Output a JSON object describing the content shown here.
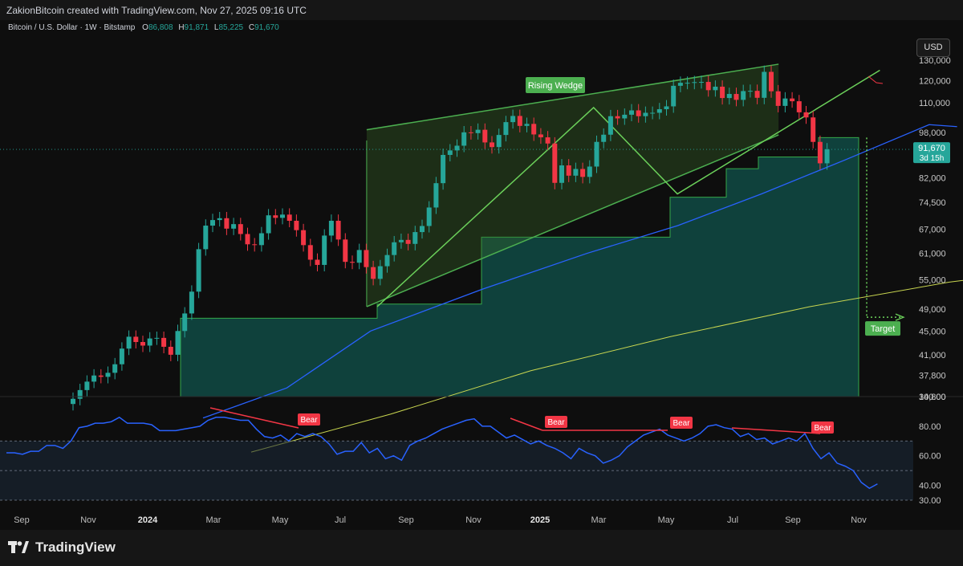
{
  "header": {
    "attribution": "ZakionBitcoin created with TradingView.com, Nov 27, 2025 09:16 UTC"
  },
  "legend": {
    "symbol": "Bitcoin / U.S. Dollar · 1W · Bitstamp",
    "o_label": "O",
    "o_value": "86,808",
    "h_label": "H",
    "h_value": "91,871",
    "l_label": "L",
    "l_value": "85,225",
    "c_label": "C",
    "c_value": "91,670"
  },
  "currency_button": "USD",
  "price_label": {
    "value": "91,670",
    "countdown": "3d 15h"
  },
  "annotations": {
    "pattern": "Rising Wedge",
    "target": "Target",
    "bear": [
      "Bear",
      "Bear",
      "Bear",
      "Bear"
    ]
  },
  "brand": {
    "name": "TradingView"
  },
  "colors": {
    "up": "#26a69a",
    "down": "#f23645",
    "wedge": "#4caf50",
    "sma_fast": "#2962ff",
    "sma_slow": "#c9d650",
    "rsi": "#2962ff",
    "bear": "#f23645"
  },
  "chart_data": [
    {
      "type": "candlestick",
      "title": "Bitcoin / U.S. Dollar · 1W · Bitstamp",
      "scale": "log",
      "y_ticks": [
        130000,
        120000,
        110000,
        98000,
        82000,
        74500,
        67000,
        61000,
        55000,
        49000,
        45000,
        41000,
        37800,
        34800
      ],
      "y_tick_labels": [
        "130,000",
        "120,000",
        "110,000",
        "98,000",
        "82,000",
        "74,500",
        "67,000",
        "61,000",
        "55,000",
        "49,000",
        "45,000",
        "41,000",
        "37,800",
        "34,800"
      ],
      "x_tick_labels": [
        "Sep",
        "Nov",
        "2024",
        "Mar",
        "May",
        "Jul",
        "Sep",
        "Nov",
        "2025",
        "Mar",
        "May",
        "Jul",
        "Sep",
        "Nov"
      ],
      "close": [
        34500,
        35700,
        36900,
        37800,
        37600,
        38200,
        39500,
        42000,
        44000,
        43100,
        42500,
        43700,
        43800,
        42300,
        41000,
        45000,
        48200,
        52500,
        62000,
        68000,
        69500,
        70000,
        67200,
        68400,
        65800,
        63200,
        63000,
        66000,
        70800,
        70100,
        71000,
        69300,
        66800,
        63000,
        59500,
        58300,
        65400,
        69300,
        64400,
        59000,
        58800,
        61800,
        57800,
        55200,
        58000,
        60600,
        63700,
        64300,
        63300,
        66300,
        67900,
        73000,
        80300,
        89700,
        91300,
        93000,
        98000,
        97700,
        99000,
        94200,
        92500,
        97000,
        102000,
        104500,
        100500,
        101300,
        97200,
        96100,
        93800,
        80400,
        86100,
        82700,
        84900,
        82300,
        85700,
        94400,
        97100,
        104400,
        103500,
        105000,
        106800,
        104400,
        105800,
        105800,
        107300,
        108500,
        117600,
        119000,
        119000,
        119300,
        119400,
        115600,
        117200,
        112100,
        113900,
        111300,
        115200,
        115300,
        112200,
        124200,
        115100,
        108700,
        111900,
        110700,
        106000,
        103900,
        94400,
        86800,
        91670
      ],
      "sma_fast_points": [
        [
          0,
          32000
        ],
        [
          12,
          36000
        ],
        [
          24,
          45000
        ],
        [
          40,
          53000
        ],
        [
          55,
          61000
        ],
        [
          68,
          68000
        ],
        [
          80,
          77000
        ],
        [
          92,
          88000
        ],
        [
          104,
          101000
        ],
        [
          108,
          100200
        ]
      ],
      "sma_slow_points": [
        [
          0,
          28000
        ],
        [
          20,
          32500
        ],
        [
          40,
          38500
        ],
        [
          60,
          44000
        ],
        [
          80,
          49500
        ],
        [
          100,
          54500
        ],
        [
          108,
          56000
        ]
      ],
      "stop_levels": [
        47300,
        47300,
        47300,
        50000,
        65000,
        65000,
        65000,
        76000,
        85000,
        89000,
        96000,
        96000
      ],
      "wedge": {
        "upper": [
          [
            47,
            99000
          ],
          [
            106,
            128000
          ]
        ],
        "lower": [
          [
            47,
            49500
          ],
          [
            106,
            97000
          ]
        ],
        "label": "Rising Wedge"
      },
      "target": {
        "price": 47500,
        "label": "Target"
      },
      "last_price": 91670
    },
    {
      "type": "line",
      "name": "RSI",
      "y_ticks": [
        100,
        80,
        60,
        40,
        30
      ],
      "y_tick_labels": [
        "100.00",
        "80.00",
        "60.00",
        "40.00",
        "30.00"
      ],
      "levels": [
        70,
        50,
        30
      ],
      "values": [
        62,
        62,
        61,
        63,
        63,
        67,
        67,
        65,
        70,
        79,
        80,
        82,
        82,
        83,
        86,
        82,
        82,
        82,
        81,
        77,
        77,
        77,
        78,
        79,
        80,
        84,
        86,
        86,
        85,
        84,
        84,
        78,
        73,
        72,
        74,
        70,
        75,
        73,
        75,
        73,
        68,
        61,
        63,
        63,
        69,
        62,
        65,
        58,
        60,
        57,
        67,
        70,
        72,
        75,
        78,
        80,
        82,
        84,
        85,
        80,
        80,
        76,
        72,
        74,
        71,
        68,
        70,
        67,
        65,
        62,
        58,
        65,
        62,
        60,
        55,
        57,
        60,
        66,
        70,
        74,
        76,
        78,
        74,
        72,
        70,
        72,
        75,
        80,
        81,
        79,
        78,
        73,
        75,
        71,
        72,
        68,
        70,
        72,
        70,
        75,
        65,
        58,
        62,
        55,
        53,
        50,
        42,
        38,
        41
      ],
      "bear_divergences": [
        [
          [
            32,
            86
          ],
          [
            47,
            74
          ]
        ],
        [
          [
            77,
            80
          ],
          [
            101,
            71
          ]
        ],
        [
          [
            101,
            71
          ],
          [
            129,
            71
          ]
        ],
        [
          [
            112,
            76
          ],
          [
            127,
            70
          ]
        ]
      ]
    }
  ]
}
